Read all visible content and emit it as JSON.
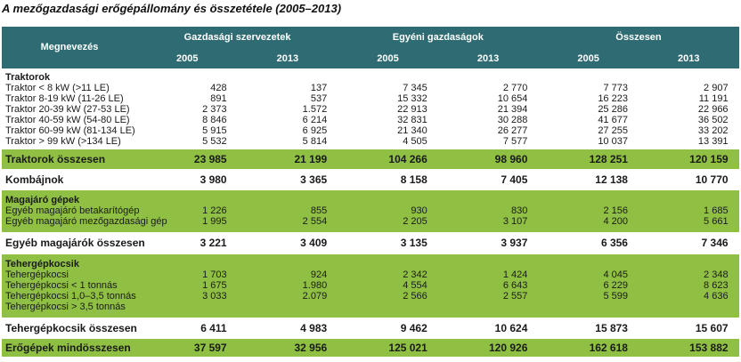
{
  "title": "A mezőgazdasági erőgépállomány és összetétele (2005–2013)",
  "header": {
    "name_col": "Megnevezés",
    "groups": [
      "Gazdasági szervezetek",
      "Egyéni gazdaságok",
      "Összesen"
    ],
    "years": [
      "2005",
      "2013",
      "2005",
      "2013",
      "2005",
      "2013"
    ]
  },
  "traktorok": {
    "title": "Traktorok",
    "rows": [
      {
        "name": "Traktor < 8 kW (>11 LE)",
        "v": [
          "428",
          "137",
          "7 345",
          "2 770",
          "7 773",
          "2 907"
        ]
      },
      {
        "name": "Traktor 8-19 kW (11-26 LE)",
        "v": [
          "891",
          "537",
          "15 332",
          "10 654",
          "16 223",
          "11 191"
        ]
      },
      {
        "name": "Traktor 20-39 kW (27-53 LE)",
        "v": [
          "2 373",
          "1.572",
          "22 913",
          "21 394",
          "25 286",
          "22 966"
        ]
      },
      {
        "name": "Traktor 40-59 kW (54-80 LE)",
        "v": [
          "8 846",
          "6 214",
          "32 831",
          "30 288",
          "41 677",
          "36 502"
        ]
      },
      {
        "name": "Traktor 60-99 kW (81-134 LE)",
        "v": [
          "5 915",
          "6 925",
          "21 340",
          "26 277",
          "27 255",
          "33 202"
        ]
      },
      {
        "name": "Traktor > 99 kW (>134 LE)",
        "v": [
          "5 532",
          "5 814",
          "4 505",
          "7 577",
          "10 037",
          "13 391"
        ]
      }
    ]
  },
  "traktorok_total": {
    "name": "Traktorok összesen",
    "v": [
      "23 985",
      "21 199",
      "104 266",
      "98 960",
      "128 251",
      "120 159"
    ]
  },
  "kombajnok": {
    "name": "Kombájnok",
    "v": [
      "3 980",
      "3 365",
      "8 158",
      "7 405",
      "12 138",
      "10 770"
    ]
  },
  "magajaro": {
    "title": "Magajáró gépek",
    "rows": [
      {
        "name": "Egyéb magajáró betakarítógép",
        "v": [
          "1 226",
          "855",
          "930",
          "830",
          "2 156",
          "1 685"
        ]
      },
      {
        "name": "Egyéb magajáró mezőgazdasági gép",
        "v": [
          "1 995",
          "2 554",
          "2 205",
          "3 107",
          "4 200",
          "5 661"
        ]
      }
    ]
  },
  "magajaro_total": {
    "name": "Egyéb magajárók összesen",
    "v": [
      "3 221",
      "3 409",
      "3 135",
      "3 937",
      "6 356",
      "7 346"
    ]
  },
  "tehergepkocsik": {
    "title": "Tehergépkocsik",
    "rows": [
      {
        "name": "Tehergépkocsi",
        "v": [
          "1 703",
          "924",
          "2 342",
          "1 424",
          "4 045",
          "2 348"
        ]
      },
      {
        "name": "Tehergépkocsi < 1 tonnás",
        "v": [
          "1 675",
          "1.980",
          "4 554",
          "6 643",
          "6 229",
          "8 623"
        ]
      },
      {
        "name": "Tehergépkocsi 1,0–3,5 tonnás",
        "v": [
          "3 033",
          "2.079",
          "2 566",
          "2 557",
          "5 599",
          "4 636"
        ]
      },
      {
        "name": "Tehergépkocsi > 3,5 tonnás",
        "v": [
          "",
          "",
          "",
          "",
          "",
          ""
        ]
      }
    ]
  },
  "teher_total": {
    "name": "Tehergépkocsik összesen",
    "v": [
      "6 411",
      "4 983",
      "9 462",
      "10 624",
      "15 873",
      "15 607"
    ]
  },
  "grand_total": {
    "name": "Erőgépek mindösszesen",
    "v": [
      "37 597",
      "32 956",
      "125 021",
      "120 926",
      "162 618",
      "153 882"
    ]
  }
}
